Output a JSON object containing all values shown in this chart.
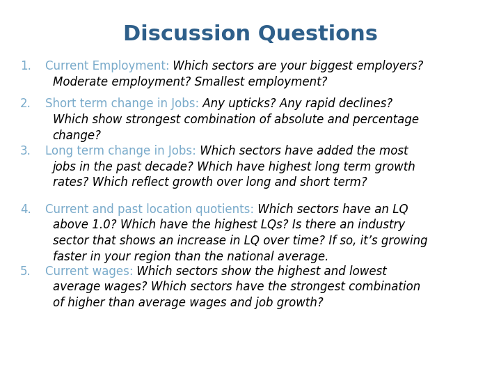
{
  "title": "Discussion Questions",
  "title_color": "#2E5F8A",
  "title_fontsize": 22,
  "background_color": "#ffffff",
  "label_color": "#7AABCB",
  "text_fontsize": 12,
  "body_color": "#000000",
  "items": [
    {
      "number": "1.",
      "label": "Current Employment:",
      "body_line1": " Which sectors are your biggest employers?",
      "body_rest": [
        "Moderate employment? Smallest employment?"
      ]
    },
    {
      "number": "2.",
      "label": "Short term change in Jobs:",
      "body_line1": " Any upticks? Any rapid declines?",
      "body_rest": [
        "Which show strongest combination of absolute and percentage",
        "change?"
      ]
    },
    {
      "number": "3.",
      "label": "Long term change in Jobs:",
      "body_line1": " Which sectors have added the most",
      "body_rest": [
        "jobs in the past decade? Which have highest long term growth",
        "rates? Which reflect growth over long and short term?"
      ]
    },
    {
      "number": "4.",
      "label": "Current and past location quotients:",
      "body_line1": " Which sectors have an LQ",
      "body_rest": [
        "above 1.0? Which have the highest LQs? Is there an industry",
        "sector that shows an increase in LQ over time? If so, it’s growing",
        "faster in your region than the national average."
      ]
    },
    {
      "number": "5.",
      "label": "Current wages:",
      "body_line1": " Which sectors show the highest and lowest",
      "body_rest": [
        "average wages? Which sectors have the strongest combination",
        "of higher than average wages and job growth?"
      ]
    }
  ]
}
